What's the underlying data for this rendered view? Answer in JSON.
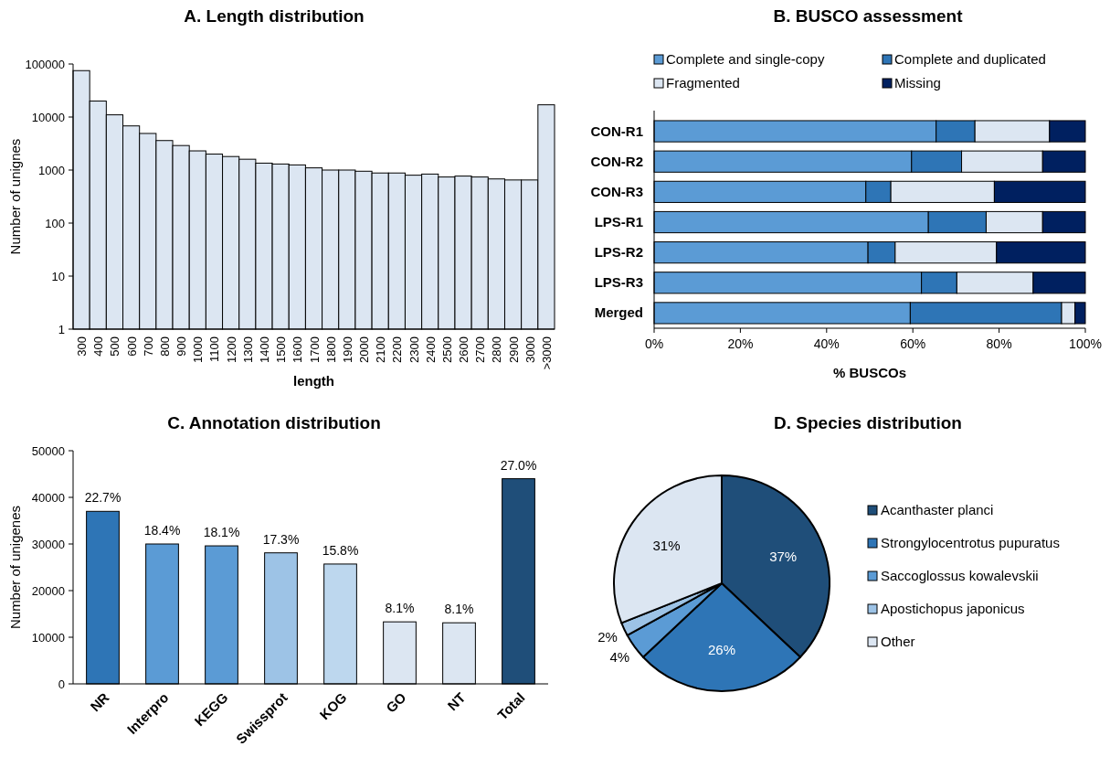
{
  "chart_data": [
    {
      "type": "bar",
      "title": "A. Length distribution",
      "xlabel": "length",
      "ylabel": "Number of unignes",
      "log": "y",
      "grid": false,
      "legend": false,
      "categories": [
        "300",
        "400",
        "500",
        "600",
        "700",
        "800",
        "900",
        "1000",
        "1100",
        "1200",
        "1300",
        "1400",
        "1500",
        "1600",
        "1700",
        "1800",
        "1900",
        "2000",
        "2100",
        "2200",
        "2300",
        "2400",
        "2500",
        "2600",
        "2700",
        "2800",
        "2900",
        "3000",
        ">3000"
      ],
      "values": [
        75000,
        20000,
        11000,
        6800,
        4900,
        3600,
        2900,
        2300,
        2000,
        1800,
        1600,
        1350,
        1300,
        1250,
        1100,
        1000,
        1000,
        950,
        880,
        880,
        800,
        840,
        740,
        770,
        740,
        680,
        650,
        650,
        17000
      ],
      "color": "#dce6f2",
      "ylim": [
        1,
        100000
      ],
      "yticks": [
        1,
        10,
        100,
        1000,
        10000,
        100000
      ]
    },
    {
      "type": "bar",
      "title": "B. BUSCO assessment",
      "xlabel": "% BUSCOs",
      "orientation": "horizontal",
      "stacked": true,
      "legend": "top",
      "grid": false,
      "categories": [
        "CON-R1",
        "CON-R2",
        "CON-R3",
        "LPS-R1",
        "LPS-R2",
        "LPS-R3",
        "Merged"
      ],
      "series": [
        {
          "name": "Complete and single-copy",
          "color": "#5b9bd5",
          "values": [
            65.4,
            59.7,
            49.1,
            63.6,
            49.6,
            62.0,
            59.4
          ]
        },
        {
          "name": "Complete and duplicated",
          "color": "#2e75b6",
          "values": [
            9.0,
            11.6,
            5.8,
            13.4,
            6.3,
            8.2,
            35.1
          ]
        },
        {
          "name": "Fragmented",
          "color": "#dce6f2",
          "values": [
            17.3,
            18.8,
            24.0,
            13.1,
            23.5,
            17.7,
            3.1
          ]
        },
        {
          "name": "Missing",
          "color": "#002060",
          "values": [
            8.3,
            9.9,
            21.1,
            9.9,
            20.6,
            12.1,
            2.4
          ]
        }
      ],
      "xlim": [
        0,
        100
      ],
      "xticks": [
        {
          "value": 0,
          "label": "0%"
        },
        {
          "value": 20,
          "label": "20%"
        },
        {
          "value": 40,
          "label": "40%"
        },
        {
          "value": 60,
          "label": "60%"
        },
        {
          "value": 80,
          "label": "80%"
        },
        {
          "value": 100,
          "label": "100%"
        }
      ]
    },
    {
      "type": "bar",
      "title": "C. Annotation distribution",
      "ylabel": "Number of unigenes",
      "grid": false,
      "legend": false,
      "categories": [
        "NR",
        "Interpro",
        "KEGG",
        "Swissprot",
        "KOG",
        "GO",
        "NT",
        "Total"
      ],
      "values": [
        37000,
        30000,
        29600,
        28100,
        25700,
        13300,
        13100,
        44000
      ],
      "colors": [
        "#2e75b6",
        "#5b9bd5",
        "#5b9bd5",
        "#9dc3e6",
        "#bdd7ee",
        "#dce6f2",
        "#dce6f2",
        "#1f4e79"
      ],
      "annotations": [
        {
          "text": "22.7%",
          "x": "NR",
          "y": 37000
        },
        {
          "text": "18.4%",
          "x": "Interpro",
          "y": 30000
        },
        {
          "text": "18.1%",
          "x": "KEGG",
          "y": 29600
        },
        {
          "text": "17.3%",
          "x": "Swissprot",
          "y": 28100
        },
        {
          "text": "15.8%",
          "x": "KOG",
          "y": 25700
        },
        {
          "text": "8.1%",
          "x": "GO",
          "y": 13300
        },
        {
          "text": "8.1%",
          "x": "NT",
          "y": 13100
        },
        {
          "text": "27.0%",
          "x": "Total",
          "y": 44000
        }
      ],
      "ylim": [
        0,
        50000
      ],
      "yticks": [
        0,
        10000,
        20000,
        30000,
        40000,
        50000
      ]
    },
    {
      "type": "pie",
      "title": "D. Species distribution",
      "legend": "right",
      "categories": [
        "Acanthaster planci",
        "Strongylocentrotus pupuratus",
        "Saccoglossus kowalevskii",
        "Apostichopus japonicus",
        "Other"
      ],
      "values": [
        37,
        26,
        4,
        2,
        31
      ],
      "colors": [
        "#1f4e79",
        "#2e75b6",
        "#5b9bd5",
        "#9dc3e6",
        "#dce6f2"
      ],
      "value_labels": [
        "37%",
        "26%",
        "4%",
        "2%",
        "31%"
      ]
    }
  ]
}
